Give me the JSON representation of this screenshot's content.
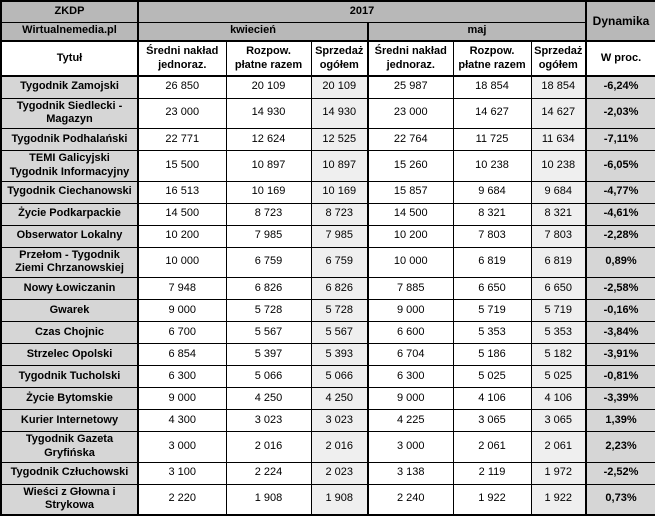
{
  "colors": {
    "header_gray": "#b8b8b8",
    "title_column_gray": "#d6d6d6",
    "sales_column_gray": "#efefef",
    "dynamics_column_gray": "#d6d6d6",
    "border_black": "#000000",
    "cell_white": "#ffffff",
    "text_black": "#000000"
  },
  "table": {
    "header": {
      "zkdp": "ZKDP",
      "year": "2017",
      "dynamika": "Dynamika",
      "source": "Wirtualnemedia.pl",
      "month_april": "kwiecień",
      "month_may": "maj",
      "title_column": "Tytuł",
      "percent_column": "W proc."
    },
    "sub_columns": [
      "Średni nakład jednoraz.",
      "Rozpow. płatne razem",
      "Sprzedaż ogółem",
      "Średni nakład jednoraz.",
      "Rozpow. płatne razem",
      "Sprzedaż ogółem"
    ],
    "rows": [
      {
        "title": "Tygodnik Zamojski",
        "values": [
          "26 850",
          "20 109",
          "20 109",
          "25 987",
          "18 854",
          "18 854"
        ],
        "dynamics": "-6,24%"
      },
      {
        "title": "Tygodnik Siedlecki - Magazyn",
        "values": [
          "23 000",
          "14 930",
          "14 930",
          "23 000",
          "14 627",
          "14 627"
        ],
        "dynamics": "-2,03%"
      },
      {
        "title": "Tygodnik Podhalański",
        "values": [
          "22 771",
          "12 624",
          "12 525",
          "22 764",
          "11 725",
          "11 634"
        ],
        "dynamics": "-7,11%"
      },
      {
        "title": "TEMI Galicyjski Tygodnik Informacyjny",
        "values": [
          "15 500",
          "10 897",
          "10 897",
          "15 260",
          "10 238",
          "10 238"
        ],
        "dynamics": "-6,05%"
      },
      {
        "title": "Tygodnik Ciechanowski",
        "values": [
          "16 513",
          "10 169",
          "10 169",
          "15 857",
          "9 684",
          "9 684"
        ],
        "dynamics": "-4,77%"
      },
      {
        "title": "Życie Podkarpackie",
        "values": [
          "14 500",
          "8 723",
          "8 723",
          "14 500",
          "8 321",
          "8 321"
        ],
        "dynamics": "-4,61%"
      },
      {
        "title": "Obserwator Lokalny",
        "values": [
          "10 200",
          "7 985",
          "7 985",
          "10 200",
          "7 803",
          "7 803"
        ],
        "dynamics": "-2,28%"
      },
      {
        "title": "Przełom - Tygodnik Ziemi Chrzanowskiej",
        "values": [
          "10 000",
          "6 759",
          "6 759",
          "10 000",
          "6 819",
          "6 819"
        ],
        "dynamics": "0,89%"
      },
      {
        "title": "Nowy Łowiczanin",
        "values": [
          "7 948",
          "6 826",
          "6 826",
          "7 885",
          "6 650",
          "6 650"
        ],
        "dynamics": "-2,58%"
      },
      {
        "title": "Gwarek",
        "values": [
          "9 000",
          "5 728",
          "5 728",
          "9 000",
          "5 719",
          "5 719"
        ],
        "dynamics": "-0,16%"
      },
      {
        "title": "Czas Chojnic",
        "values": [
          "6 700",
          "5 567",
          "5 567",
          "6 600",
          "5 353",
          "5 353"
        ],
        "dynamics": "-3,84%"
      },
      {
        "title": "Strzelec Opolski",
        "values": [
          "6 854",
          "5 397",
          "5 393",
          "6 704",
          "5 186",
          "5 182"
        ],
        "dynamics": "-3,91%"
      },
      {
        "title": "Tygodnik Tucholski",
        "values": [
          "6 300",
          "5 066",
          "5 066",
          "6 300",
          "5 025",
          "5 025"
        ],
        "dynamics": "-0,81%"
      },
      {
        "title": "Życie Bytomskie",
        "values": [
          "9 000",
          "4 250",
          "4 250",
          "9 000",
          "4 106",
          "4 106"
        ],
        "dynamics": "-3,39%"
      },
      {
        "title": "Kurier Internetowy",
        "values": [
          "4 300",
          "3 023",
          "3 023",
          "4 225",
          "3 065",
          "3 065"
        ],
        "dynamics": "1,39%"
      },
      {
        "title": "Tygodnik Gazeta Gryfińska",
        "values": [
          "3 000",
          "2 016",
          "2 016",
          "3 000",
          "2 061",
          "2 061"
        ],
        "dynamics": "2,23%"
      },
      {
        "title": "Tygodnik Człuchowski",
        "values": [
          "3 100",
          "2 224",
          "2 023",
          "3 138",
          "2 119",
          "1 972"
        ],
        "dynamics": "-2,52%"
      },
      {
        "title": "Wieści z Głowna i Strykowa",
        "values": [
          "2 220",
          "1 908",
          "1 908",
          "2 240",
          "1 922",
          "1 922"
        ],
        "dynamics": "0,73%"
      }
    ]
  },
  "chart_data": {
    "type": "table",
    "source_labels": [
      "ZKDP",
      "Wirtualnemedia.pl"
    ],
    "year": "2017",
    "month_groups": [
      "kwiecień",
      "maj"
    ],
    "columns": [
      "Tytuł",
      "kwiecień – Średni nakład jednoraz.",
      "kwiecień – Rozpow. płatne razem",
      "kwiecień – Sprzedaż ogółem",
      "maj – Średni nakład jednoraz.",
      "maj – Rozpow. płatne razem",
      "maj – Sprzedaż ogółem",
      "Dynamika – W proc."
    ],
    "rows": [
      [
        "Tygodnik Zamojski",
        26850,
        20109,
        20109,
        25987,
        18854,
        18854,
        -6.24
      ],
      [
        "Tygodnik Siedlecki - Magazyn",
        23000,
        14930,
        14930,
        23000,
        14627,
        14627,
        -2.03
      ],
      [
        "Tygodnik Podhalański",
        22771,
        12624,
        12525,
        22764,
        11725,
        11634,
        -7.11
      ],
      [
        "TEMI Galicyjski Tygodnik Informacyjny",
        15500,
        10897,
        10897,
        15260,
        10238,
        10238,
        -6.05
      ],
      [
        "Tygodnik Ciechanowski",
        16513,
        10169,
        10169,
        15857,
        9684,
        9684,
        -4.77
      ],
      [
        "Życie Podkarpackie",
        14500,
        8723,
        8723,
        14500,
        8321,
        8321,
        -4.61
      ],
      [
        "Obserwator Lokalny",
        10200,
        7985,
        7985,
        10200,
        7803,
        7803,
        -2.28
      ],
      [
        "Przełom - Tygodnik Ziemi Chrzanowskiej",
        10000,
        6759,
        6759,
        10000,
        6819,
        6819,
        0.89
      ],
      [
        "Nowy Łowiczanin",
        7948,
        6826,
        6826,
        7885,
        6650,
        6650,
        -2.58
      ],
      [
        "Gwarek",
        9000,
        5728,
        5728,
        9000,
        5719,
        5719,
        -0.16
      ],
      [
        "Czas Chojnic",
        6700,
        5567,
        5567,
        6600,
        5353,
        5353,
        -3.84
      ],
      [
        "Strzelec Opolski",
        6854,
        5397,
        5393,
        6704,
        5186,
        5182,
        -3.91
      ],
      [
        "Tygodnik Tucholski",
        6300,
        5066,
        5066,
        6300,
        5025,
        5025,
        -0.81
      ],
      [
        "Życie Bytomskie",
        9000,
        4250,
        4250,
        9000,
        4106,
        4106,
        -3.39
      ],
      [
        "Kurier Internetowy",
        4300,
        3023,
        3023,
        4225,
        3065,
        3065,
        1.39
      ],
      [
        "Tygodnik Gazeta Gryfińska",
        3000,
        2016,
        2016,
        3000,
        2061,
        2061,
        2.23
      ],
      [
        "Tygodnik Człuchowski",
        3100,
        2224,
        2023,
        3138,
        2119,
        1972,
        -2.52
      ],
      [
        "Wieści z Głowna i Strykowa",
        2220,
        1908,
        1908,
        2240,
        1922,
        1922,
        0.73
      ]
    ]
  }
}
